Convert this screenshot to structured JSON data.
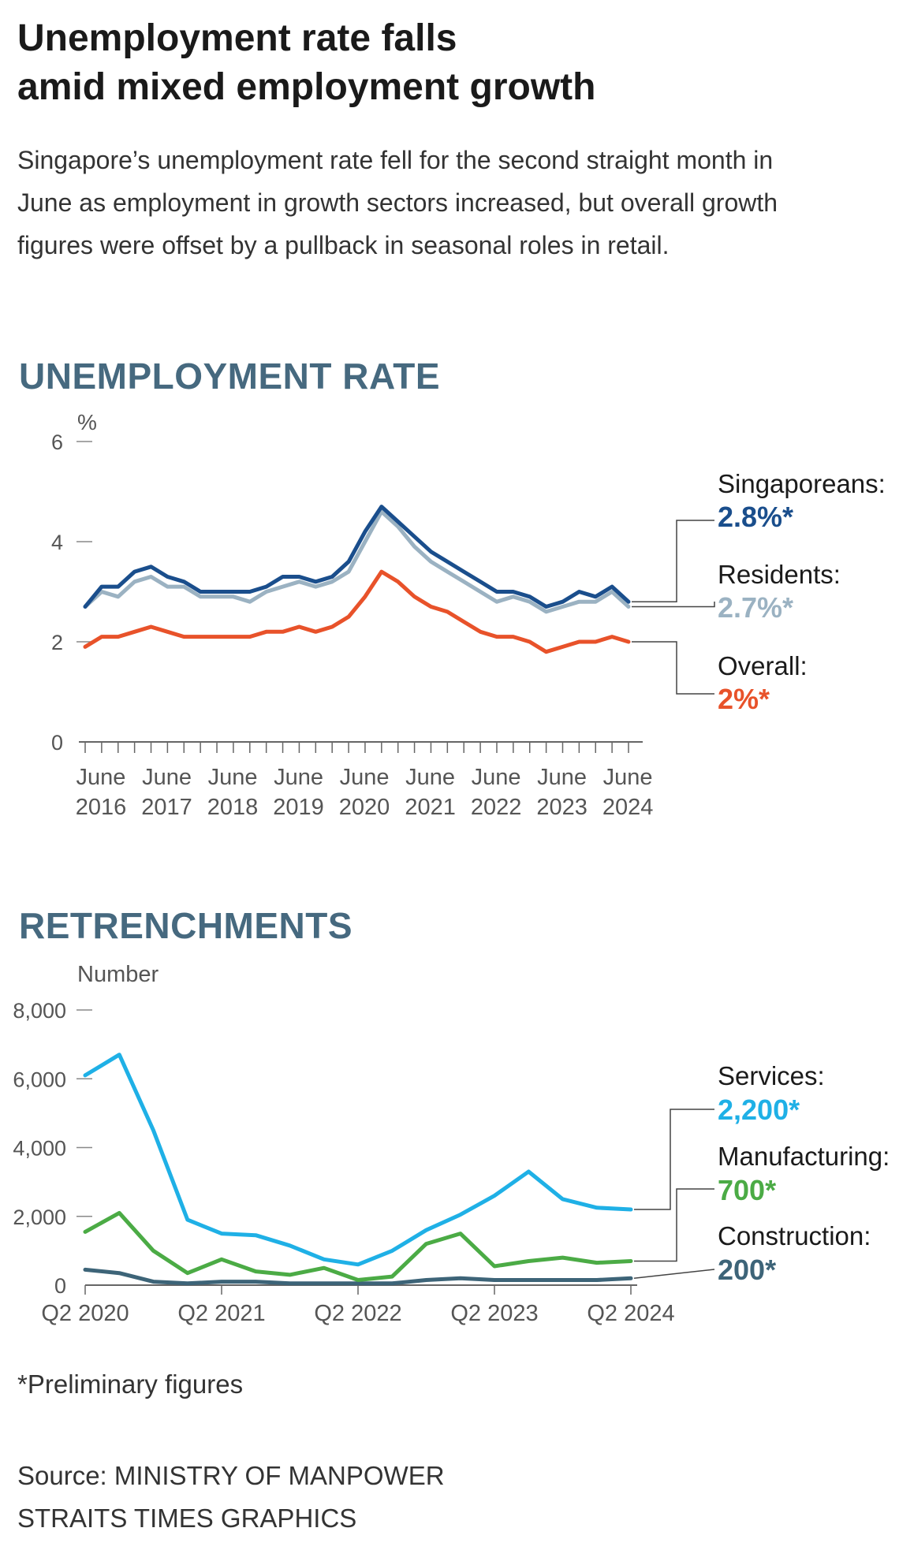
{
  "headline": {
    "line1": "Unemployment rate falls",
    "line2": "amid mixed employment growth"
  },
  "intro": "Singapore’s unemployment rate fell for the second straight month in June as employment in growth sectors increased, but overall growth figures were offset by a pullback in seasonal roles in retail.",
  "colors": {
    "singaporeans": "#1a4e8c",
    "residents": "#9bb2c2",
    "overall": "#e8522a",
    "services": "#1fb0e6",
    "manufacturing": "#4bab45",
    "construction": "#3d6478",
    "section": "#46697f"
  },
  "chart_data": [
    {
      "type": "line",
      "title": "UNEMPLOYMENT RATE",
      "ylabel": "%",
      "ylim": [
        0,
        6
      ],
      "yticks": [
        "0",
        "2",
        "4",
        "6"
      ],
      "x_tick_labels": [
        {
          "month": "June",
          "year": "2016"
        },
        {
          "month": "June",
          "year": "2017"
        },
        {
          "month": "June",
          "year": "2018"
        },
        {
          "month": "June",
          "year": "2019"
        },
        {
          "month": "June",
          "year": "2020"
        },
        {
          "month": "June",
          "year": "2021"
        },
        {
          "month": "June",
          "year": "2022"
        },
        {
          "month": "June",
          "year": "2023"
        },
        {
          "month": "June",
          "year": "2024"
        }
      ],
      "series": [
        {
          "name": "Singaporeans",
          "label": "Singaporeans:",
          "value_label": "2.8%*",
          "color": "#1a4e8c",
          "values": [
            2.7,
            3.1,
            3.1,
            3.4,
            3.5,
            3.3,
            3.2,
            3.0,
            3.0,
            3.0,
            3.0,
            3.1,
            3.3,
            3.3,
            3.2,
            3.3,
            3.6,
            4.2,
            4.7,
            4.4,
            4.1,
            3.8,
            3.6,
            3.4,
            3.2,
            3.0,
            3.0,
            2.9,
            2.7,
            2.8,
            3.0,
            2.9,
            3.1,
            2.8
          ]
        },
        {
          "name": "Residents",
          "label": "Residents:",
          "value_label": "2.7%*",
          "color": "#9bb2c2",
          "values": [
            2.7,
            3.0,
            2.9,
            3.2,
            3.3,
            3.1,
            3.1,
            2.9,
            2.9,
            2.9,
            2.8,
            3.0,
            3.1,
            3.2,
            3.1,
            3.2,
            3.4,
            4.0,
            4.6,
            4.3,
            3.9,
            3.6,
            3.4,
            3.2,
            3.0,
            2.8,
            2.9,
            2.8,
            2.6,
            2.7,
            2.8,
            2.8,
            3.0,
            2.7
          ]
        },
        {
          "name": "Overall",
          "label": "Overall:",
          "value_label": "2%*",
          "color": "#e8522a",
          "values": [
            1.9,
            2.1,
            2.1,
            2.2,
            2.3,
            2.2,
            2.1,
            2.1,
            2.1,
            2.1,
            2.1,
            2.2,
            2.2,
            2.3,
            2.2,
            2.3,
            2.5,
            2.9,
            3.4,
            3.2,
            2.9,
            2.7,
            2.6,
            2.4,
            2.2,
            2.1,
            2.1,
            2.0,
            1.8,
            1.9,
            2.0,
            2.0,
            2.1,
            2.0
          ]
        }
      ]
    },
    {
      "type": "line",
      "title": "RETRENCHMENTS",
      "ylabel": "Number",
      "ylim": [
        0,
        8000
      ],
      "yticks": [
        "0",
        "2,000",
        "4,000",
        "6,000",
        "8,000"
      ],
      "x_tick_labels": [
        "Q2 2020",
        "Q2 2021",
        "Q2 2022",
        "Q2 2023",
        "Q2 2024"
      ],
      "series": [
        {
          "name": "Services",
          "label": "Services:",
          "value_label": "2,200*",
          "color": "#1fb0e6",
          "values": [
            6100,
            6700,
            4500,
            1900,
            1500,
            1450,
            1150,
            750,
            600,
            1000,
            1600,
            2050,
            2600,
            3300,
            2500,
            2250,
            2200
          ]
        },
        {
          "name": "Manufacturing",
          "label": "Manufacturing:",
          "value_label": "700*",
          "color": "#4bab45",
          "values": [
            1550,
            2100,
            1000,
            350,
            750,
            400,
            300,
            500,
            150,
            250,
            1200,
            1500,
            550,
            700,
            800,
            650,
            700
          ]
        },
        {
          "name": "Construction",
          "label": "Construction:",
          "value_label": "200*",
          "color": "#3d6478",
          "values": [
            450,
            350,
            100,
            50,
            100,
            100,
            50,
            50,
            50,
            50,
            150,
            200,
            150,
            150,
            150,
            150,
            200
          ]
        }
      ]
    }
  ],
  "footnote": "*Preliminary figures",
  "source": {
    "line1": "Source: MINISTRY OF MANPOWER",
    "line2": "STRAITS TIMES GRAPHICS"
  }
}
